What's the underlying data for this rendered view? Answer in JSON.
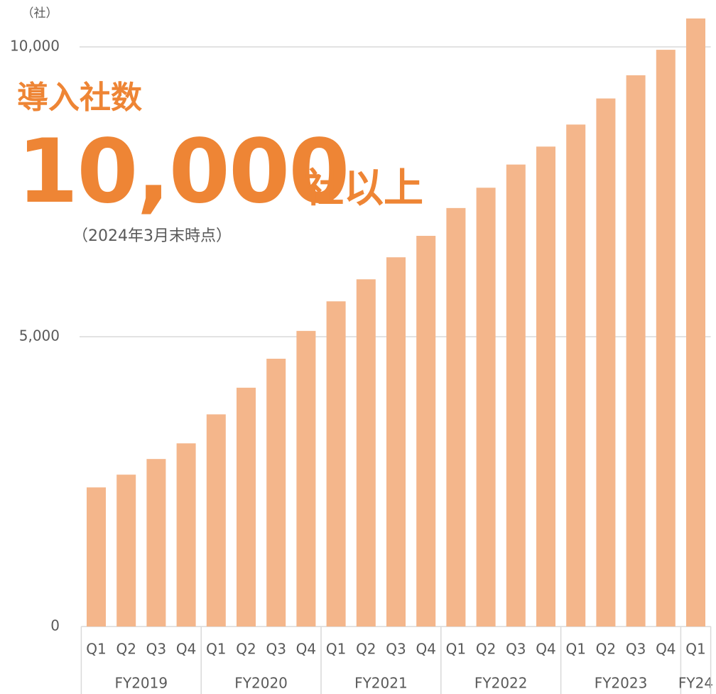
{
  "chart_data": {
    "type": "bar",
    "unit_label": "（社）",
    "headline": "導入社数",
    "big_number": "10,000",
    "big_number_suffix": "社以上",
    "note": "（2024年3月末時点）",
    "groups": [
      {
        "name": "FY2019",
        "categories": [
          "Q1",
          "Q2",
          "Q3",
          "Q4"
        ]
      },
      {
        "name": "FY2020",
        "categories": [
          "Q1",
          "Q2",
          "Q3",
          "Q4"
        ]
      },
      {
        "name": "FY2021",
        "categories": [
          "Q1",
          "Q2",
          "Q3",
          "Q4"
        ]
      },
      {
        "name": "FY2022",
        "categories": [
          "Q1",
          "Q2",
          "Q3",
          "Q4"
        ]
      },
      {
        "name": "FY2023",
        "categories": [
          "Q1",
          "Q2",
          "Q3",
          "Q4"
        ]
      },
      {
        "name": "FY24",
        "categories": [
          "Q1"
        ]
      }
    ],
    "values": [
      2400,
      2620,
      2890,
      3160,
      3660,
      4120,
      4620,
      5100,
      5610,
      5990,
      6370,
      6740,
      7220,
      7570,
      7970,
      8280,
      8660,
      9110,
      9510,
      9950,
      10490
    ],
    "color": "#f4b68b",
    "ylim": [
      0,
      10600
    ],
    "yticks": [
      0,
      {
        "value": 5000,
        "label": "5,000"
      },
      {
        "value": 10000,
        "label": "10,000"
      }
    ],
    "grid": true
  }
}
